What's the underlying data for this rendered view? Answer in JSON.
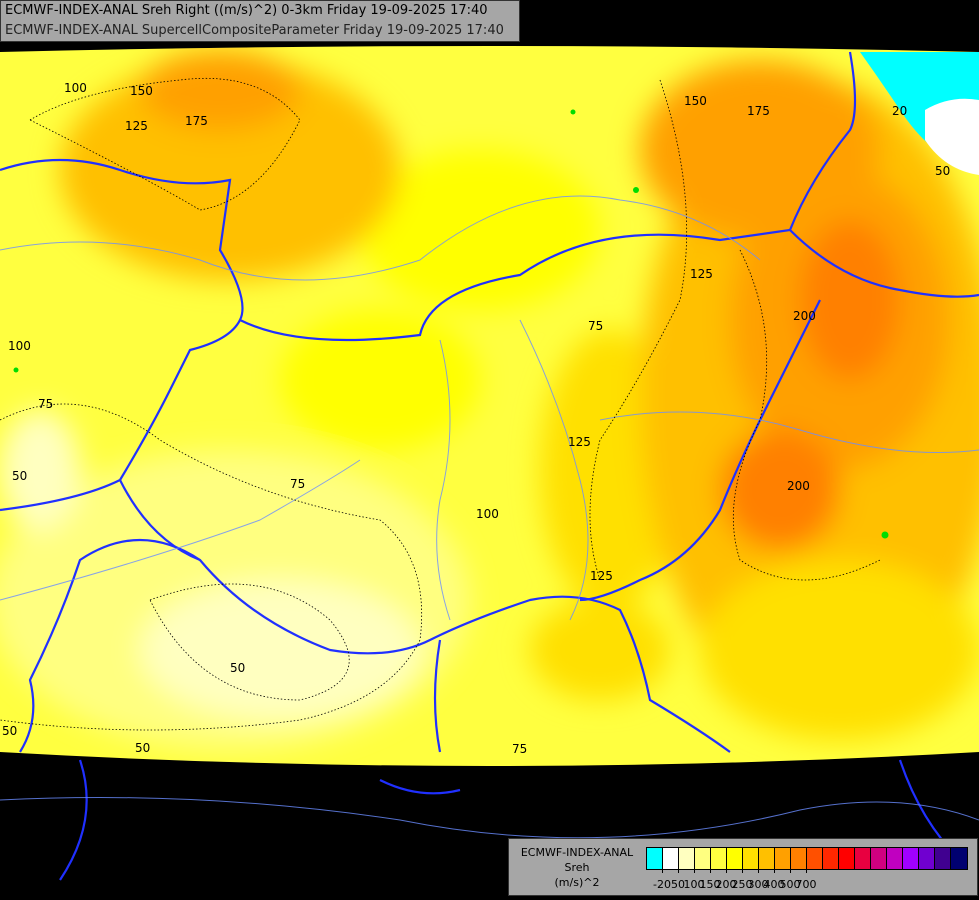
{
  "title": {
    "line1": "ECMWF-INDEX-ANAL Sreh Right ((m/s)^2) 0-3km Friday 19-09-2025 17:40",
    "line2": "ECMWF-INDEX-ANAL SupercellCompositeParameter Friday 19-09-2025 17:40"
  },
  "legend": {
    "model": "ECMWF-INDEX-ANAL",
    "variable": "Sreh",
    "unit": "(m/s)^2",
    "colors": [
      "#00ffff",
      "#ffffff",
      "#ffffc0",
      "#ffff80",
      "#ffff40",
      "#ffff00",
      "#ffe000",
      "#ffc000",
      "#ffa000",
      "#ff8000",
      "#ff5000",
      "#ff2800",
      "#ff0000",
      "#e80040",
      "#d00080",
      "#c000c0",
      "#a000ff",
      "#7000d0",
      "#400090",
      "#000070"
    ],
    "tick_labels": [
      "-20",
      "50",
      "100",
      "150",
      "200",
      "250",
      "300",
      "400",
      "500",
      "700"
    ]
  },
  "contour_labels": [
    "100",
    "150",
    "125",
    "175",
    "150",
    "175",
    "20",
    "50",
    "125",
    "200",
    "100",
    "75",
    "75",
    "50",
    "75",
    "125",
    "100",
    "200",
    "125",
    "50",
    "50",
    "50",
    "75"
  ]
}
